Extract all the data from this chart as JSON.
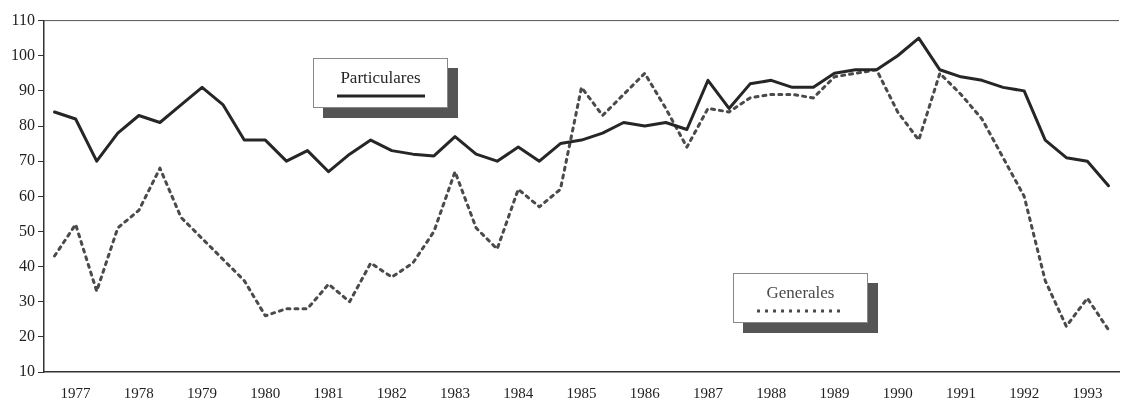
{
  "chart_data": {
    "type": "line",
    "categories": [
      null,
      "1977",
      null,
      null,
      "1978",
      null,
      null,
      "1979",
      null,
      null,
      "1980",
      null,
      null,
      "1981",
      null,
      null,
      "1982",
      null,
      null,
      "1983",
      null,
      null,
      "1984",
      null,
      null,
      "1985",
      null,
      null,
      "1986",
      null,
      null,
      "1987",
      null,
      null,
      "1988",
      null,
      null,
      "1989",
      null,
      null,
      "1990",
      null,
      null,
      "1991",
      null,
      null,
      "1992",
      null,
      null,
      "1993",
      null
    ],
    "series": [
      {
        "name": "Particulares",
        "color": "#262626",
        "line_style": "solid",
        "values": [
          84,
          82,
          70,
          78,
          83,
          81,
          86,
          91,
          86,
          76,
          76,
          70,
          73,
          67,
          72,
          76,
          73,
          72,
          71.5,
          77,
          72,
          70,
          74,
          70,
          75,
          76,
          78,
          81,
          80,
          81,
          79,
          93,
          85,
          92,
          93,
          91,
          91,
          95,
          96,
          96,
          100,
          105,
          96,
          94,
          93,
          91,
          90,
          76,
          71,
          70,
          63
        ]
      },
      {
        "name": "Generales",
        "color": "#4a4a4a",
        "line_style": "dotted",
        "values": [
          43,
          52,
          33,
          51,
          56,
          68,
          54,
          48,
          42,
          36,
          26,
          28,
          28,
          35,
          30,
          41,
          37,
          41,
          50,
          67,
          51,
          45,
          62,
          57,
          62,
          91,
          83,
          89,
          95,
          85,
          74,
          85,
          84,
          88,
          89,
          89,
          88,
          94,
          95,
          96,
          84,
          76,
          95,
          89,
          82,
          71,
          60,
          36,
          23,
          31,
          22
        ]
      }
    ],
    "ylim": [
      10,
      110
    ],
    "yticks": [
      10,
      20,
      30,
      40,
      50,
      60,
      70,
      80,
      90,
      100,
      110
    ],
    "grid": false,
    "legend": "top",
    "marker": "none"
  }
}
